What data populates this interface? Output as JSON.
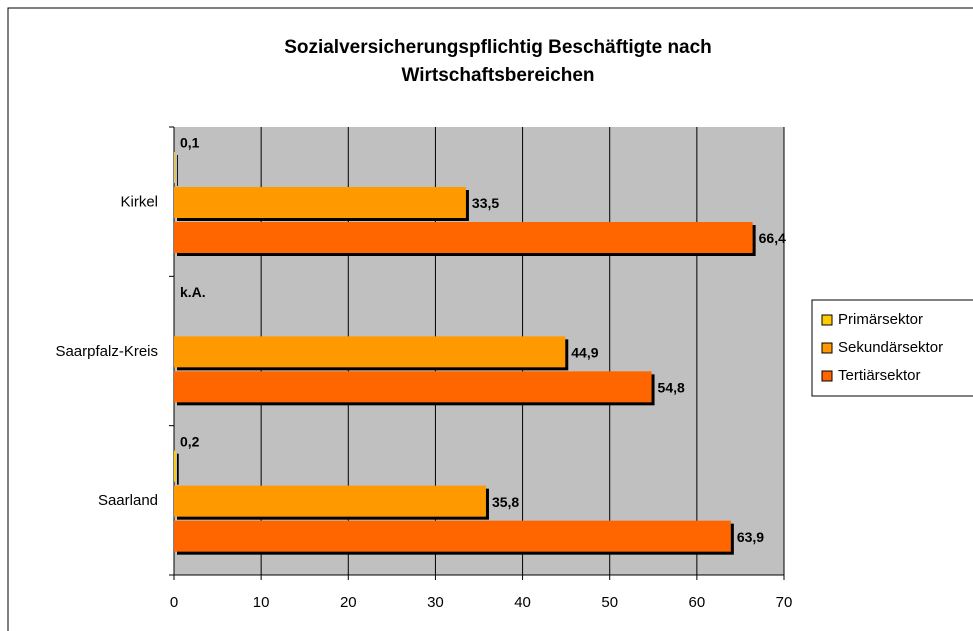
{
  "chart_data": {
    "type": "bar",
    "orientation": "horizontal",
    "title": [
      "Sozialversicherungspflichtig Beschäftigte nach",
      "Wirtschaftsbereichen"
    ],
    "categories": [
      "Kirkel",
      "Saarpfalz-Kreis",
      "Saarland"
    ],
    "series": [
      {
        "name": "Primärsektor",
        "color": "#ffcc00",
        "values": [
          0.1,
          null,
          0.2
        ],
        "value_labels": [
          "0,1",
          "k.A.",
          "0,2"
        ]
      },
      {
        "name": "Sekundärsektor",
        "color": "#ff9900",
        "values": [
          33.5,
          44.9,
          35.8
        ],
        "value_labels": [
          "33,5",
          "44,9",
          "35,8"
        ]
      },
      {
        "name": "Tertiärsektor",
        "color": "#ff6600",
        "values": [
          66.4,
          54.8,
          63.9
        ],
        "value_labels": [
          "66,4",
          "54,8",
          "63,9"
        ]
      }
    ],
    "xlim": [
      0,
      70
    ],
    "xticks": [
      0,
      10,
      20,
      30,
      40,
      50,
      60,
      70
    ],
    "grid": true,
    "legend": "right"
  }
}
